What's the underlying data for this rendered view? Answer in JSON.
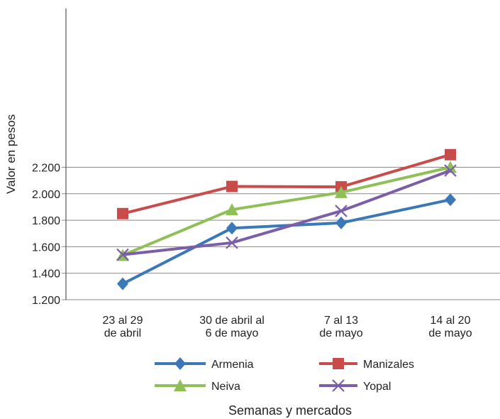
{
  "chart_data": {
    "type": "line",
    "categories": [
      [
        "23 al 29",
        "de abril"
      ],
      [
        "30 de abril al",
        "6 de mayo"
      ],
      [
        "7 al 13",
        "de mayo"
      ],
      [
        "14 al 20",
        "de mayo"
      ]
    ],
    "ylabel": "Valor en pesos",
    "xlabel": "Semanas y mercados",
    "ylim": [
      1200,
      2300
    ],
    "yticks": [
      1200,
      1400,
      1600,
      1800,
      2000,
      2200
    ],
    "ytick_labels": [
      "1.200",
      "1.400",
      "1.600",
      "1.800",
      "2.000",
      "2.200"
    ],
    "grid": true,
    "legend_position": "bottom",
    "series": [
      {
        "name": "Armenia",
        "marker": "diamond",
        "color": "#3b78b8",
        "values": [
          1320,
          1740,
          1780,
          1955
        ]
      },
      {
        "name": "Manizales",
        "marker": "square",
        "color": "#c94c4a",
        "values": [
          1850,
          2055,
          2052,
          2295
        ]
      },
      {
        "name": "Neiva",
        "marker": "triangle",
        "color": "#8fbf57",
        "values": [
          1535,
          1880,
          2010,
          2200
        ]
      },
      {
        "name": "Yopal",
        "marker": "x",
        "color": "#7b5ea7",
        "values": [
          1540,
          1630,
          1870,
          2175
        ]
      }
    ]
  }
}
